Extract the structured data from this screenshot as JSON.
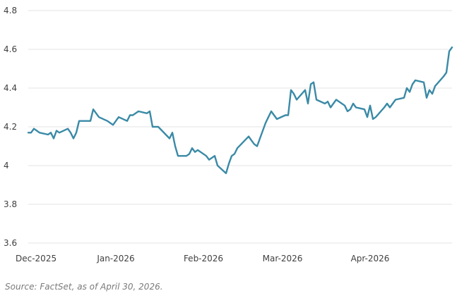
{
  "chart_data": {
    "type": "line",
    "title": "",
    "xlabel": "",
    "ylabel": "",
    "ylim": [
      3.6,
      4.8
    ],
    "y_ticks": [
      "3.6",
      "3.8",
      "4",
      "4.2",
      "4.4",
      "4.6",
      "4.8"
    ],
    "y_tick_values": [
      3.6,
      3.8,
      4.0,
      4.2,
      4.4,
      4.6,
      4.8
    ],
    "x_range": [
      "2025-12-01",
      "2026-04-30"
    ],
    "x_ticks": [
      "Dec-2025",
      "Jan-2026",
      "Feb-2026",
      "Mar-2026",
      "Apr-2026"
    ],
    "x_tick_dates": [
      "2025-12-01",
      "2026-01-01",
      "2026-02-01",
      "2026-03-01",
      "2026-04-01"
    ],
    "grid": "horizontal",
    "legend": "none",
    "line_color": "#3a8aa6",
    "series": [
      {
        "x": [
          "2025-12-01",
          "2025-12-02",
          "2025-12-03",
          "2025-12-04",
          "2025-12-05",
          "2025-12-08",
          "2025-12-09",
          "2025-12-10",
          "2025-12-11",
          "2025-12-12",
          "2025-12-15",
          "2025-12-16",
          "2025-12-17",
          "2025-12-18",
          "2025-12-19",
          "2025-12-22",
          "2025-12-23",
          "2025-12-24",
          "2025-12-26",
          "2025-12-29",
          "2025-12-30",
          "2025-12-31",
          "2026-01-02",
          "2026-01-05",
          "2026-01-06",
          "2026-01-07",
          "2026-01-08",
          "2026-01-09",
          "2026-01-12",
          "2026-01-13",
          "2026-01-14",
          "2026-01-15",
          "2026-01-16",
          "2026-01-20",
          "2026-01-21",
          "2026-01-22",
          "2026-01-23",
          "2026-01-26",
          "2026-01-27",
          "2026-01-28",
          "2026-01-29",
          "2026-01-30",
          "2026-02-02",
          "2026-02-03",
          "2026-02-04",
          "2026-02-05",
          "2026-02-06",
          "2026-02-09",
          "2026-02-10",
          "2026-02-11",
          "2026-02-12",
          "2026-02-13",
          "2026-02-17",
          "2026-02-18",
          "2026-02-19",
          "2026-02-20",
          "2026-02-23",
          "2026-02-24",
          "2026-02-25",
          "2026-02-26",
          "2026-02-27",
          "2026-03-02",
          "2026-03-03",
          "2026-03-04",
          "2026-03-05",
          "2026-03-06",
          "2026-03-09",
          "2026-03-10",
          "2026-03-11",
          "2026-03-12",
          "2026-03-13",
          "2026-03-16",
          "2026-03-17",
          "2026-03-18",
          "2026-03-19",
          "2026-03-20",
          "2026-03-23",
          "2026-03-24",
          "2026-03-25",
          "2026-03-26",
          "2026-03-27",
          "2026-03-30",
          "2026-03-31",
          "2026-04-01",
          "2026-04-02",
          "2026-04-03",
          "2026-04-06",
          "2026-04-07",
          "2026-04-08",
          "2026-04-09",
          "2026-04-10",
          "2026-04-13",
          "2026-04-14",
          "2026-04-15",
          "2026-04-16",
          "2026-04-17",
          "2026-04-20",
          "2026-04-21",
          "2026-04-22",
          "2026-04-23",
          "2026-04-24",
          "2026-04-27",
          "2026-04-28",
          "2026-04-29",
          "2026-04-30"
        ],
        "values": [
          4.17,
          4.17,
          4.19,
          4.18,
          4.17,
          4.16,
          4.17,
          4.14,
          4.18,
          4.17,
          4.19,
          4.17,
          4.14,
          4.17,
          4.23,
          4.23,
          4.23,
          4.29,
          4.25,
          4.23,
          4.22,
          4.21,
          4.25,
          4.23,
          4.26,
          4.26,
          4.27,
          4.28,
          4.27,
          4.28,
          4.2,
          4.2,
          4.2,
          4.14,
          4.17,
          4.1,
          4.05,
          4.05,
          4.06,
          4.09,
          4.07,
          4.08,
          4.05,
          4.03,
          4.04,
          4.05,
          4.0,
          3.96,
          4.01,
          4.05,
          4.06,
          4.09,
          4.15,
          4.13,
          4.11,
          4.1,
          4.22,
          4.25,
          4.28,
          4.26,
          4.24,
          4.26,
          4.26,
          4.39,
          4.37,
          4.34,
          4.39,
          4.32,
          4.42,
          4.43,
          4.34,
          4.32,
          4.33,
          4.3,
          4.32,
          4.34,
          4.31,
          4.28,
          4.29,
          4.32,
          4.3,
          4.29,
          4.25,
          4.31,
          4.24,
          4.25,
          4.3,
          4.32,
          4.3,
          4.32,
          4.34,
          4.35,
          4.4,
          4.38,
          4.42,
          4.44,
          4.43,
          4.35,
          4.39,
          4.37,
          4.41,
          4.46,
          4.48,
          4.59,
          4.61
        ]
      }
    ]
  },
  "source_note": "Source: FactSet, as of April 30, 2026."
}
